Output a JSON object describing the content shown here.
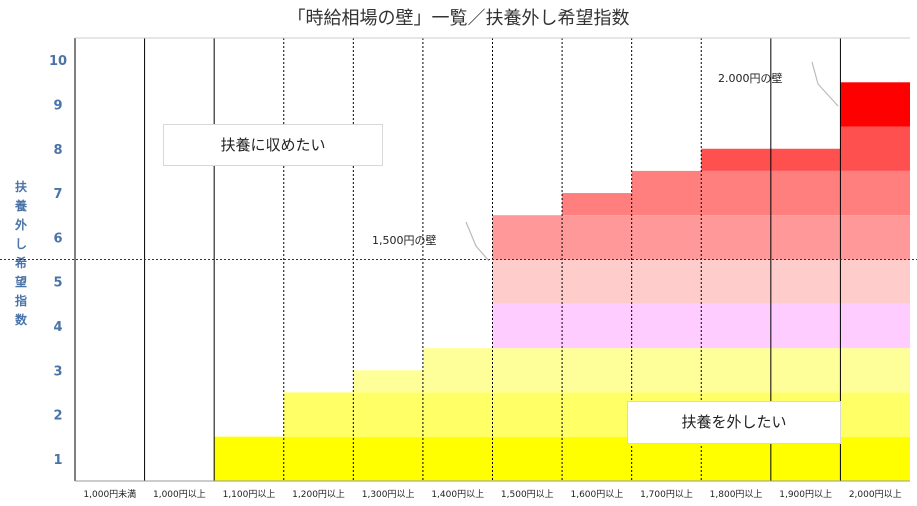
{
  "chart_data": {
    "type": "bar",
    "title": "「時給相場の壁」一覧／扶養外し希望指数",
    "ylabel": "扶養外し希望指数",
    "xlabel": "",
    "categories": [
      "1,000円未満",
      "1,000円以上",
      "1,100円以上",
      "1,200円以上",
      "1,300円以上",
      "1,400円以上",
      "1,500円以上",
      "1,600円以上",
      "1,700円以上",
      "1,800円以上",
      "1,900円以上",
      "2,000円以上"
    ],
    "values": [
      0.5,
      0.5,
      1.5,
      2.5,
      3.0,
      3.5,
      6.5,
      7.0,
      7.5,
      8.0,
      8.0,
      9.5
    ],
    "ylim": [
      0.5,
      10.5
    ],
    "yticks": [
      1,
      2,
      3,
      4,
      5,
      6,
      7,
      8,
      9,
      10
    ],
    "grid": "vertical",
    "band_colors": [
      "#ffff00",
      "#ffff66",
      "#ffff99",
      "#ffccff",
      "#ffcccc",
      "#ff9999",
      "#ff7f7f",
      "#ff5050",
      "#ff0000"
    ],
    "threshold_y": 5.5,
    "annotations": [
      {
        "text": "扶養に収めたい"
      },
      {
        "text": "扶養を外したい"
      },
      {
        "text": "1,500円の壁"
      },
      {
        "text": "2.000円の壁"
      }
    ]
  }
}
